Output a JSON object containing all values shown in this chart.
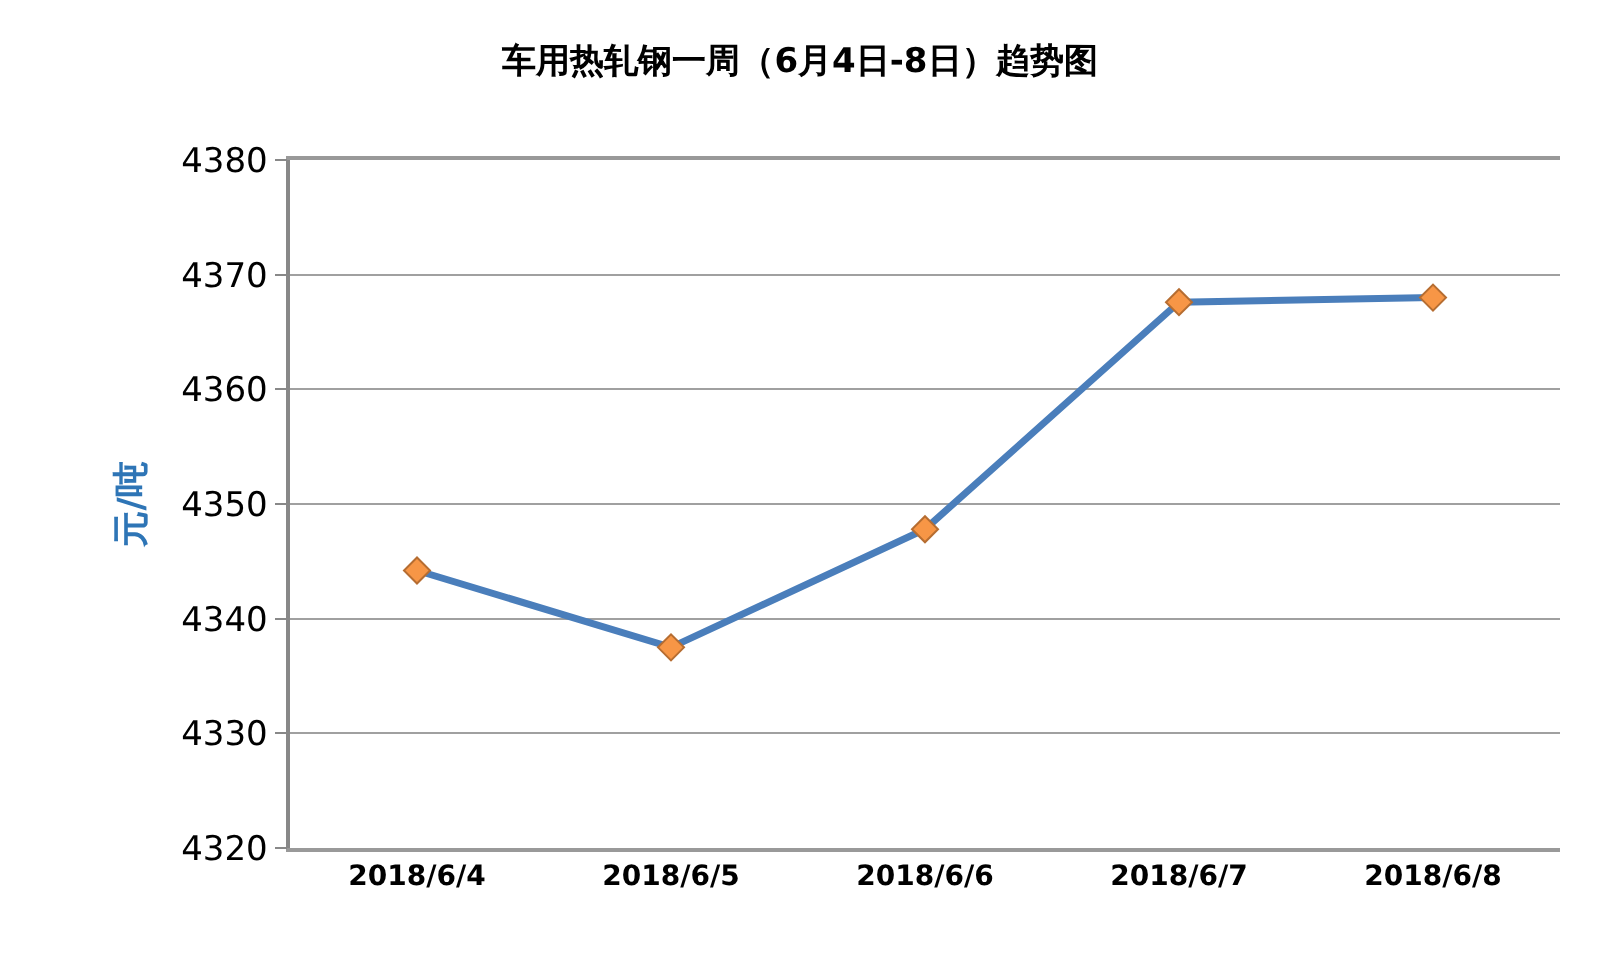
{
  "chart_data": {
    "type": "line",
    "title": "车用热轧钢一周（6月4日-8日）趋势图",
    "ylabel": "元/吨",
    "categories": [
      "2018/6/4",
      "2018/6/5",
      "2018/6/6",
      "2018/6/7",
      "2018/6/8"
    ],
    "series": [
      {
        "color": "#4a7ebb",
        "values": [
          4344.2,
          4337.5,
          4347.8,
          4367.6,
          4368.0
        ]
      }
    ],
    "ylim": [
      4320,
      4380
    ],
    "yticks": [
      4320,
      4330,
      4340,
      4350,
      4360,
      4370,
      4380
    ],
    "grid": "y",
    "marker": "diamond",
    "line_style": "solid"
  }
}
